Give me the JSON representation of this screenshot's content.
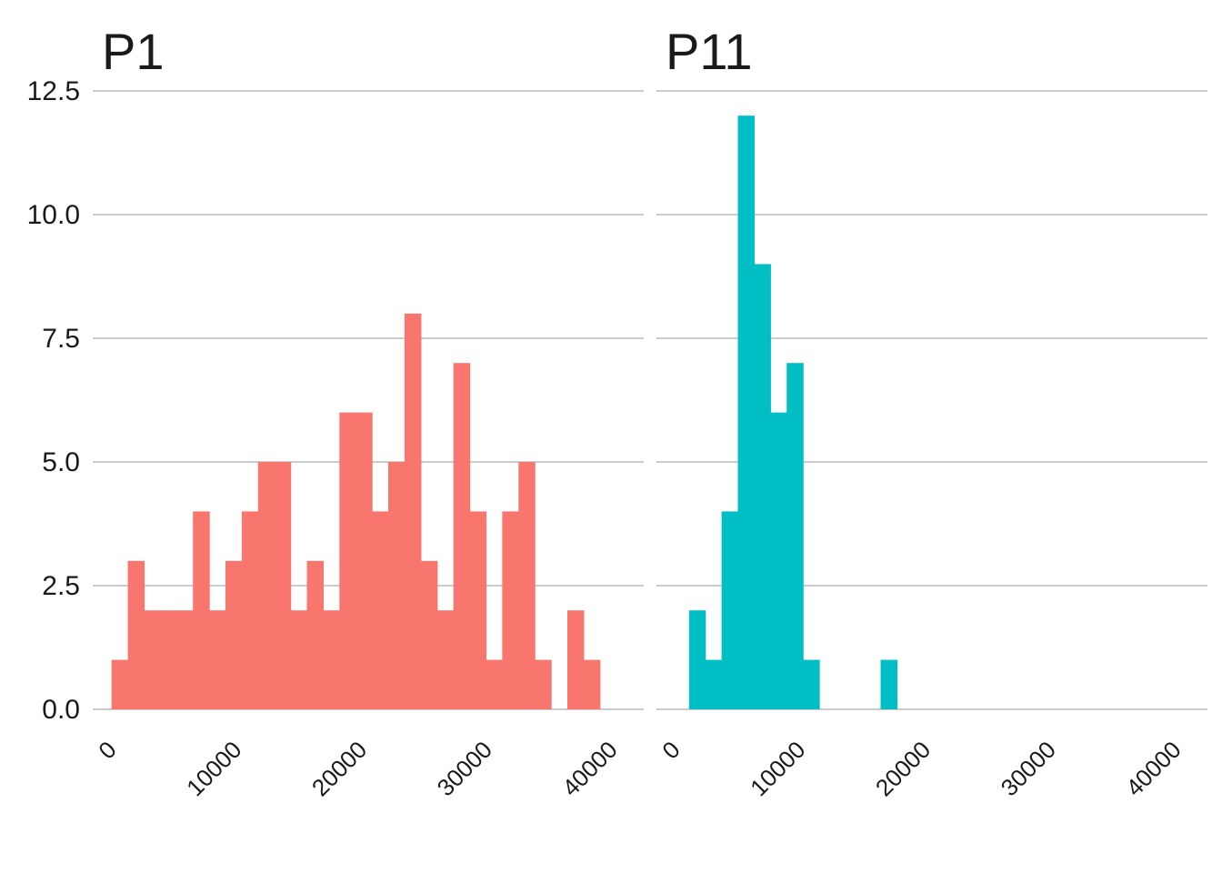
{
  "chart_data": {
    "type": "bar",
    "subtype": "faceted-histogram",
    "facets": [
      {
        "title": "P1",
        "color": "#F8766D",
        "bin_width": 1300,
        "bins": [
          {
            "x": -500,
            "count": 1
          },
          {
            "x": 800,
            "count": 3
          },
          {
            "x": 2100,
            "count": 2
          },
          {
            "x": 3400,
            "count": 2
          },
          {
            "x": 4700,
            "count": 2
          },
          {
            "x": 6000,
            "count": 4
          },
          {
            "x": 7300,
            "count": 2
          },
          {
            "x": 8600,
            "count": 3
          },
          {
            "x": 9900,
            "count": 4
          },
          {
            "x": 11200,
            "count": 5
          },
          {
            "x": 12500,
            "count": 5
          },
          {
            "x": 13800,
            "count": 2
          },
          {
            "x": 15100,
            "count": 3
          },
          {
            "x": 16400,
            "count": 2
          },
          {
            "x": 17700,
            "count": 6
          },
          {
            "x": 19000,
            "count": 6
          },
          {
            "x": 20300,
            "count": 4
          },
          {
            "x": 21600,
            "count": 5
          },
          {
            "x": 22900,
            "count": 8
          },
          {
            "x": 24200,
            "count": 3
          },
          {
            "x": 25500,
            "count": 2
          },
          {
            "x": 26800,
            "count": 7
          },
          {
            "x": 28100,
            "count": 4
          },
          {
            "x": 29400,
            "count": 1
          },
          {
            "x": 30700,
            "count": 4
          },
          {
            "x": 32000,
            "count": 5
          },
          {
            "x": 33300,
            "count": 1
          },
          {
            "x": 34600,
            "count": 0
          },
          {
            "x": 35900,
            "count": 2
          },
          {
            "x": 37200,
            "count": 1
          }
        ]
      },
      {
        "title": "P11",
        "color": "#00BFC4",
        "bin_width": 1300,
        "bins": [
          {
            "x": 600,
            "count": 2
          },
          {
            "x": 1900,
            "count": 1
          },
          {
            "x": 3200,
            "count": 4
          },
          {
            "x": 4500,
            "count": 12
          },
          {
            "x": 5800,
            "count": 9
          },
          {
            "x": 7100,
            "count": 6
          },
          {
            "x": 8400,
            "count": 7
          },
          {
            "x": 9700,
            "count": 1
          },
          {
            "x": 15900,
            "count": 1
          }
        ]
      }
    ],
    "xlim": [
      -2000,
      42000
    ],
    "ylim": [
      0,
      12.5
    ],
    "x_ticks": [
      0,
      10000,
      20000,
      30000,
      40000
    ],
    "x_tick_labels": [
      "0",
      "10000",
      "20000",
      "30000",
      "40000"
    ],
    "y_ticks": [
      0,
      2.5,
      5,
      7.5,
      10,
      12.5
    ],
    "y_tick_labels": [
      "0.0",
      "2.5",
      "5.0",
      "7.5",
      "10.0",
      "12.5"
    ],
    "grid": "horizontal-major",
    "legend": "none",
    "xlabel": "",
    "ylabel": ""
  }
}
